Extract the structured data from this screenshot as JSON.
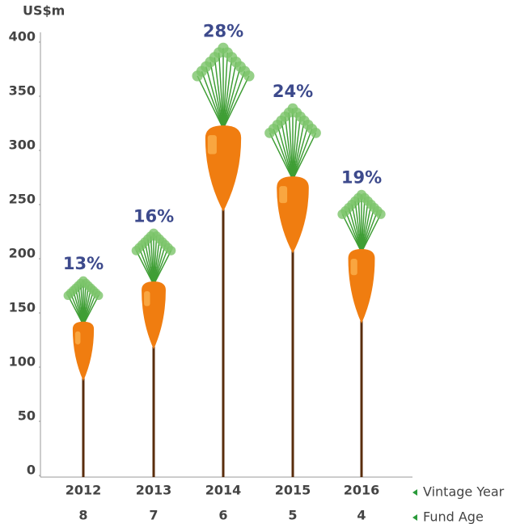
{
  "chart_data": {
    "type": "pictogram-bar",
    "y_label": "US$m",
    "categories": [
      "2012",
      "2013",
      "2014",
      "2015",
      "2016"
    ],
    "categories2": [
      "8",
      "7",
      "6",
      "5",
      "4"
    ],
    "row_labels": [
      "Vintage Year",
      "Fund Age"
    ],
    "values": [
      142,
      179,
      323,
      276,
      209
    ],
    "rates": [
      13,
      16,
      28,
      24,
      19
    ],
    "rate_labels": [
      "13%",
      "16%",
      "28%",
      "24%",
      "19%"
    ],
    "color": "#f07d10",
    "ylim": [
      0,
      400
    ],
    "yticks": [
      0,
      50,
      100,
      150,
      200,
      250,
      300,
      350,
      400
    ]
  }
}
